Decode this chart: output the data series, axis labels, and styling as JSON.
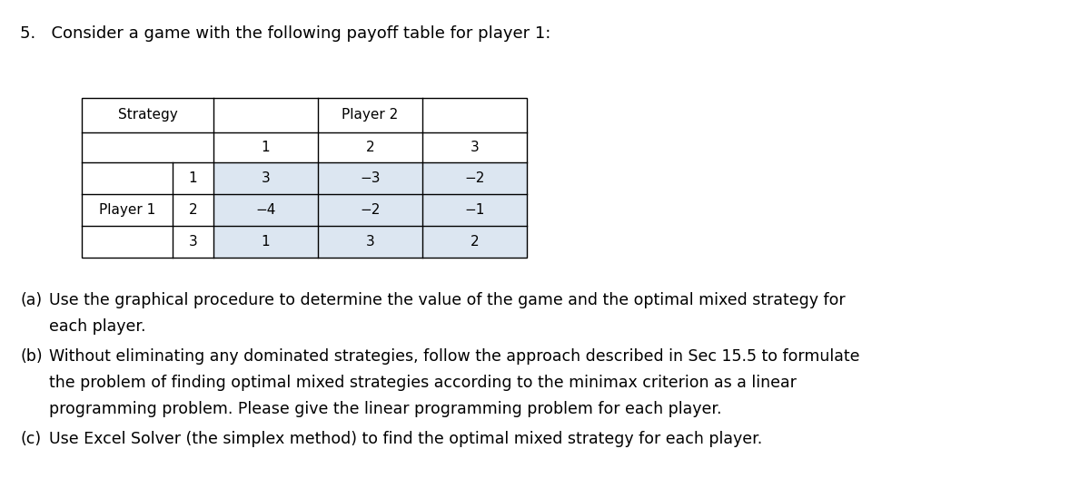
{
  "title": "5.   Consider a game with the following payoff table for player 1:",
  "title_fontsize": 13,
  "bg_color": "#ffffff",
  "table": {
    "cell_bg_data": "#dce6f1",
    "cell_bg_white": "#ffffff",
    "border_color": "#000000",
    "strategy_label": "Strategy",
    "player2_label": "Player 2",
    "player1_label": "Player 1",
    "col_headers": [
      "1",
      "2",
      "3"
    ],
    "row_headers": [
      "1",
      "2",
      "3"
    ],
    "data": [
      [
        "3",
        "−3",
        "−2"
      ],
      [
        "−4",
        "−2",
        "−1"
      ],
      [
        "1",
        "3",
        "2"
      ]
    ]
  },
  "questions": [
    [
      "(a)",
      "Use the graphical procedure to determine the value of the game and the optimal mixed strategy for",
      "each player."
    ],
    [
      "(b)",
      "Without eliminating any dominated strategies, follow the approach described in Sec 15.5 to formulate",
      "the problem of finding optimal mixed strategies according to the minimax criterion as a linear",
      "programming problem. Please give the linear programming problem for each player."
    ],
    [
      "(c)",
      "Use Excel Solver (the simplex method) to find the optimal mixed strategy for each player."
    ]
  ],
  "question_fontsize": 12.5
}
